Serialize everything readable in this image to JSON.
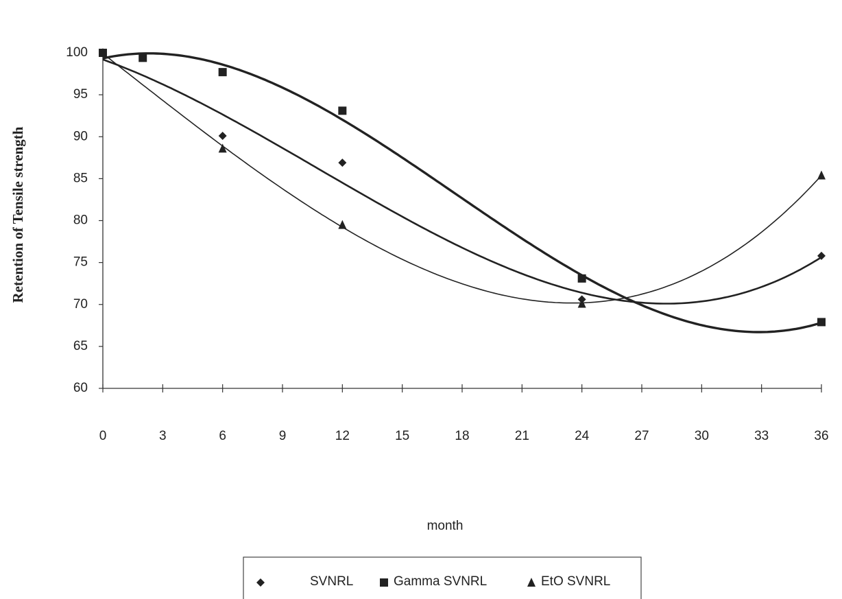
{
  "chart_data": {
    "type": "scatter",
    "y_label": "Retention of Tensile strength",
    "x_label": "month",
    "xlim": [
      0,
      36
    ],
    "xticks": [
      0,
      3,
      6,
      9,
      12,
      15,
      18,
      21,
      24,
      27,
      30,
      33,
      36
    ],
    "ylim": [
      60,
      100
    ],
    "yticks": [
      60,
      65,
      70,
      75,
      80,
      85,
      90,
      95,
      100
    ],
    "trendline": {
      "type": "polynomial",
      "order": 3
    },
    "series": [
      {
        "name": "SVNRL",
        "color": "#222222",
        "marker": "diamond",
        "x": [
          0,
          6,
          12,
          24,
          36
        ],
        "values": [
          100,
          90.1,
          86.9,
          70.6,
          75.8
        ]
      },
      {
        "name": "Gamma SVNRL",
        "color": "#222222",
        "marker": "square",
        "x": [
          0,
          2,
          6,
          12,
          24,
          36
        ],
        "values": [
          100,
          99.4,
          97.7,
          93.1,
          73.1,
          67.9
        ]
      },
      {
        "name": "EtO SVNRL",
        "color": "#222222",
        "marker": "triangle",
        "x": [
          0,
          6,
          12,
          24,
          36
        ],
        "values": [
          100,
          88.6,
          79.5,
          70.1,
          85.4
        ]
      }
    ]
  }
}
